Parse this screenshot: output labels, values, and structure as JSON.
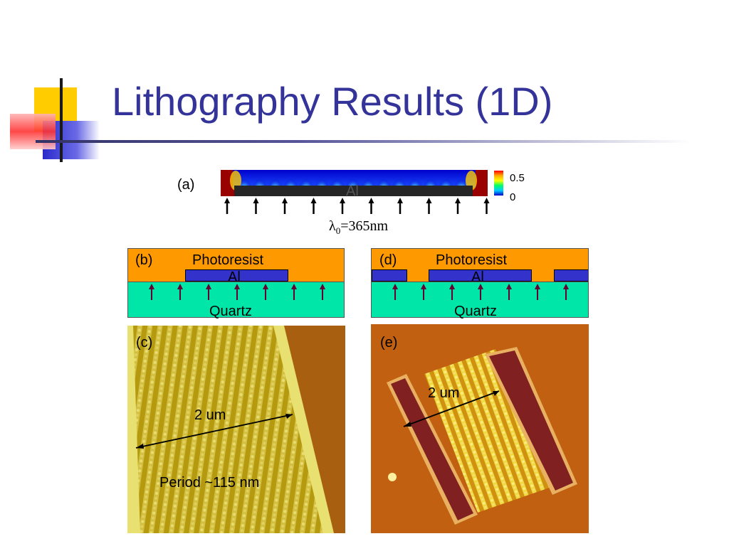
{
  "slide": {
    "title": "Lithography Results (1D)"
  },
  "panel_a": {
    "label": "(a)",
    "metal_label": "Al",
    "wavelength_symbol": "λ",
    "wavelength_subscript": "0",
    "wavelength_value": "=365nm",
    "colorbar_max": "0.5",
    "colorbar_min": "0"
  },
  "panel_b": {
    "label": "(b)",
    "resist_label": "Photoresist",
    "metal_label": "Al",
    "substrate_label": "Quartz"
  },
  "panel_c": {
    "label": "(c)",
    "scale_label": "2 um",
    "period_label": "Period  ~115 nm"
  },
  "panel_d": {
    "label": "(d)",
    "resist_label": "Photoresist",
    "metal_label": "Al",
    "substrate_label": "Quartz"
  },
  "panel_e": {
    "label": "(e)",
    "scale_label": "2 um"
  },
  "colors": {
    "title": "#333399",
    "photoresist": "#FF9900",
    "aluminum": "#3333CC",
    "quartz": "#00E6A8",
    "metal_dark": "#262626",
    "frame_red": "#8B0000"
  }
}
